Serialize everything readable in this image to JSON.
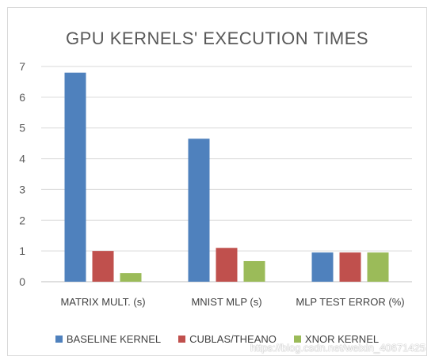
{
  "chart_data": {
    "type": "bar",
    "title": "GPU KERNELS' EXECUTION TIMES",
    "categories": [
      "MATRIX MULT. (s)",
      "MNIST MLP (s)",
      "MLP TEST ERROR (%)"
    ],
    "series": [
      {
        "name": "BASELINE KERNEL",
        "color": "#4f81bd",
        "values": [
          6.8,
          4.65,
          0.95
        ]
      },
      {
        "name": "CUBLAS/THEANO",
        "color": "#c0504d",
        "values": [
          1.0,
          1.1,
          0.95
        ]
      },
      {
        "name": "XNOR KERNEL",
        "color": "#9bbb59",
        "values": [
          0.28,
          0.67,
          0.95
        ]
      }
    ],
    "ylim": [
      0,
      7
    ],
    "yticks": [
      "0",
      "1",
      "2",
      "3",
      "4",
      "5",
      "6",
      "7"
    ],
    "grid": true,
    "legend": "bottom"
  },
  "watermark": "https://blog.csdn.net/weixin_40671425"
}
